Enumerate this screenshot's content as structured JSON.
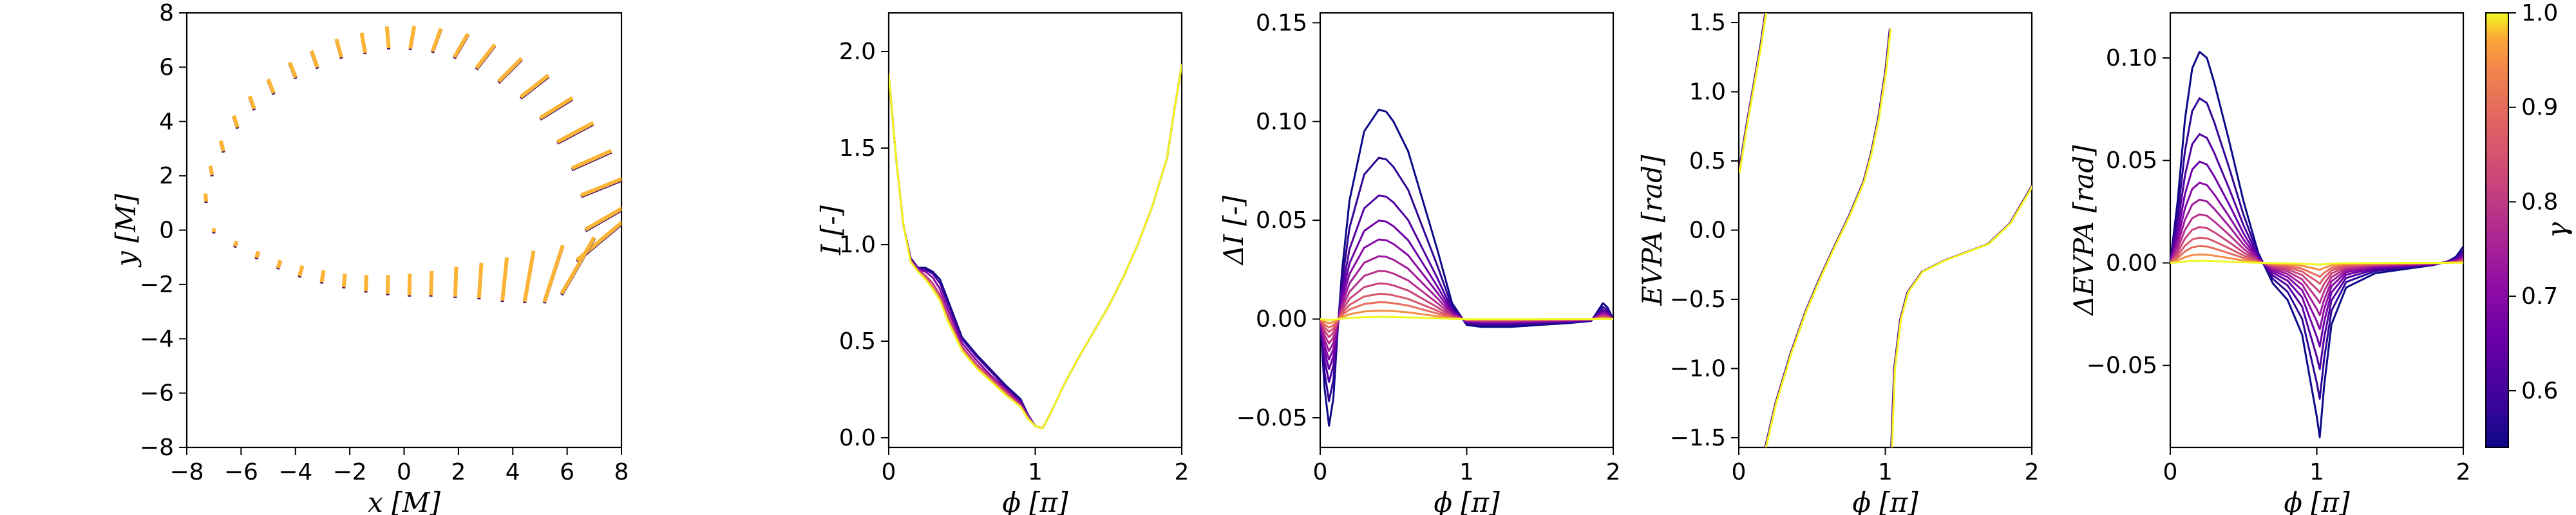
{
  "chart_data": [
    {
      "id": "trajectory",
      "type": "scatter",
      "xlabel": "x [M]",
      "ylabel": "y [M]",
      "xlim": [
        -8,
        8
      ],
      "ylim": [
        -8,
        8
      ],
      "xticks": [
        -8,
        -6,
        -4,
        -2,
        0,
        2,
        4,
        6,
        8
      ],
      "yticks": [
        -8,
        -6,
        -4,
        -2,
        0,
        2,
        4,
        6,
        8
      ],
      "xtick_labels": [
        "−8",
        "−6",
        "−4",
        "−2",
        "0",
        "2",
        "4",
        "6",
        "8"
      ],
      "ytick_labels": [
        "−8",
        "−6",
        "−4",
        "−2",
        "0",
        "2",
        "4",
        "6",
        "8"
      ],
      "points": [
        {
          "x": -7.3,
          "y": 1.2,
          "len": 0.3,
          "ang": 95
        },
        {
          "x": -7.1,
          "y": 2.2,
          "len": 0.35,
          "ang": 100
        },
        {
          "x": -6.7,
          "y": 3.1,
          "len": 0.4,
          "ang": 105
        },
        {
          "x": -6.2,
          "y": 4.0,
          "len": 0.45,
          "ang": 108
        },
        {
          "x": -5.6,
          "y": 4.7,
          "len": 0.5,
          "ang": 110
        },
        {
          "x": -4.9,
          "y": 5.3,
          "len": 0.55,
          "ang": 112
        },
        {
          "x": -4.1,
          "y": 5.9,
          "len": 0.6,
          "ang": 112
        },
        {
          "x": -3.3,
          "y": 6.3,
          "len": 0.65,
          "ang": 110
        },
        {
          "x": -2.4,
          "y": 6.7,
          "len": 0.7,
          "ang": 105
        },
        {
          "x": -1.5,
          "y": 6.9,
          "len": 0.75,
          "ang": 100
        },
        {
          "x": -0.6,
          "y": 7.1,
          "len": 0.8,
          "ang": 95
        },
        {
          "x": 0.3,
          "y": 7.1,
          "len": 0.85,
          "ang": 80
        },
        {
          "x": 1.2,
          "y": 7.0,
          "len": 0.9,
          "ang": 70
        },
        {
          "x": 2.1,
          "y": 6.8,
          "len": 1.0,
          "ang": 60
        },
        {
          "x": 3.0,
          "y": 6.4,
          "len": 1.1,
          "ang": 52
        },
        {
          "x": 3.9,
          "y": 5.9,
          "len": 1.2,
          "ang": 45
        },
        {
          "x": 4.8,
          "y": 5.3,
          "len": 1.3,
          "ang": 38
        },
        {
          "x": 5.6,
          "y": 4.5,
          "len": 1.4,
          "ang": 32
        },
        {
          "x": 6.3,
          "y": 3.6,
          "len": 1.5,
          "ang": 28
        },
        {
          "x": 6.9,
          "y": 2.6,
          "len": 1.6,
          "ang": 24
        },
        {
          "x": 7.3,
          "y": 1.6,
          "len": 1.7,
          "ang": 22
        },
        {
          "x": 7.5,
          "y": 0.5,
          "len": 1.9,
          "ang": 30
        },
        {
          "x": 7.2,
          "y": -0.4,
          "len": 2.2,
          "ang": 40
        },
        {
          "x": 6.4,
          "y": -1.3,
          "len": 2.4,
          "ang": 60
        },
        {
          "x": 5.5,
          "y": -1.6,
          "len": 2.2,
          "ang": 72
        },
        {
          "x": 4.6,
          "y": -1.7,
          "len": 1.9,
          "ang": 80
        },
        {
          "x": 3.7,
          "y": -1.8,
          "len": 1.6,
          "ang": 84
        },
        {
          "x": 2.8,
          "y": -1.85,
          "len": 1.3,
          "ang": 86
        },
        {
          "x": 1.9,
          "y": -1.9,
          "len": 1.1,
          "ang": 88
        },
        {
          "x": 1.0,
          "y": -1.95,
          "len": 0.9,
          "ang": 88
        },
        {
          "x": 0.2,
          "y": -2.0,
          "len": 0.8,
          "ang": 89
        },
        {
          "x": -0.6,
          "y": -2.0,
          "len": 0.7,
          "ang": 89
        },
        {
          "x": -1.4,
          "y": -1.95,
          "len": 0.6,
          "ang": 88
        },
        {
          "x": -2.2,
          "y": -1.85,
          "len": 0.5,
          "ang": 85
        },
        {
          "x": -3.0,
          "y": -1.7,
          "len": 0.45,
          "ang": 80
        },
        {
          "x": -3.8,
          "y": -1.5,
          "len": 0.4,
          "ang": 75
        },
        {
          "x": -4.6,
          "y": -1.25,
          "len": 0.3,
          "ang": 70
        },
        {
          "x": -5.4,
          "y": -0.9,
          "len": 0.25,
          "ang": 70
        },
        {
          "x": -6.2,
          "y": -0.5,
          "len": 0.2,
          "ang": 70
        },
        {
          "x": -7.0,
          "y": 0.0,
          "len": 0.15,
          "ang": 80
        }
      ]
    },
    {
      "id": "intensity",
      "type": "line",
      "xlabel": "ϕ [π]",
      "ylabel": "I [-]",
      "xlim": [
        0,
        2
      ],
      "ylim": [
        -0.05,
        2.2
      ],
      "xticks": [
        0,
        1,
        2
      ],
      "yticks": [
        0.0,
        0.5,
        1.0,
        1.5,
        2.0
      ],
      "xtick_labels": [
        "0",
        "1",
        "2"
      ],
      "ytick_labels": [
        "0.0",
        "0.5",
        "1.0",
        "1.5",
        "2.0"
      ],
      "x": [
        0.0,
        0.05,
        0.1,
        0.15,
        0.2,
        0.25,
        0.3,
        0.35,
        0.4,
        0.5,
        0.6,
        0.7,
        0.8,
        0.9,
        0.95,
        1.0,
        1.05,
        1.1,
        1.2,
        1.3,
        1.4,
        1.5,
        1.6,
        1.7,
        1.8,
        1.9,
        1.95,
        2.0
      ],
      "gamma_min": 0.54,
      "gamma_max": 1.0,
      "series": [
        {
          "gamma": 0.54,
          "values": [
            1.88,
            1.45,
            1.1,
            0.93,
            0.88,
            0.88,
            0.86,
            0.82,
            0.72,
            0.52,
            0.43,
            0.35,
            0.27,
            0.2,
            0.12,
            0.06,
            0.05,
            0.12,
            0.28,
            0.42,
            0.55,
            0.68,
            0.83,
            1.0,
            1.2,
            1.45,
            1.7,
            1.93
          ]
        },
        {
          "gamma": 0.6,
          "values": [
            1.88,
            1.45,
            1.1,
            0.93,
            0.88,
            0.87,
            0.85,
            0.8,
            0.7,
            0.51,
            0.42,
            0.34,
            0.26,
            0.19,
            0.12,
            0.06,
            0.05,
            0.12,
            0.28,
            0.42,
            0.55,
            0.68,
            0.83,
            1.0,
            1.2,
            1.45,
            1.7,
            1.93
          ]
        },
        {
          "gamma": 0.7,
          "values": [
            1.88,
            1.45,
            1.1,
            0.92,
            0.87,
            0.86,
            0.83,
            0.77,
            0.67,
            0.49,
            0.4,
            0.32,
            0.25,
            0.18,
            0.11,
            0.06,
            0.05,
            0.12,
            0.28,
            0.42,
            0.55,
            0.68,
            0.83,
            1.0,
            1.2,
            1.45,
            1.7,
            1.93
          ]
        },
        {
          "gamma": 0.8,
          "values": [
            1.88,
            1.45,
            1.1,
            0.92,
            0.87,
            0.84,
            0.8,
            0.74,
            0.64,
            0.47,
            0.38,
            0.31,
            0.24,
            0.17,
            0.11,
            0.06,
            0.05,
            0.12,
            0.28,
            0.42,
            0.55,
            0.68,
            0.83,
            1.0,
            1.2,
            1.45,
            1.7,
            1.93
          ]
        },
        {
          "gamma": 0.9,
          "values": [
            1.88,
            1.45,
            1.1,
            0.91,
            0.86,
            0.83,
            0.78,
            0.72,
            0.62,
            0.46,
            0.37,
            0.3,
            0.23,
            0.16,
            0.1,
            0.06,
            0.05,
            0.12,
            0.28,
            0.42,
            0.55,
            0.68,
            0.83,
            1.0,
            1.2,
            1.45,
            1.7,
            1.93
          ]
        },
        {
          "gamma": 1.0,
          "values": [
            1.88,
            1.45,
            1.1,
            0.91,
            0.86,
            0.82,
            0.77,
            0.71,
            0.61,
            0.45,
            0.36,
            0.29,
            0.22,
            0.16,
            0.1,
            0.06,
            0.05,
            0.12,
            0.28,
            0.42,
            0.55,
            0.68,
            0.83,
            1.0,
            1.2,
            1.45,
            1.7,
            1.93
          ]
        }
      ]
    },
    {
      "id": "delta-intensity",
      "type": "line",
      "xlabel": "ϕ [π]",
      "ylabel": "ΔI [-]",
      "xlim": [
        0,
        2
      ],
      "ylim": [
        -0.065,
        0.155
      ],
      "xticks": [
        0,
        1,
        2
      ],
      "yticks": [
        -0.05,
        0.0,
        0.05,
        0.1,
        0.15
      ],
      "xtick_labels": [
        "0",
        "1",
        "2"
      ],
      "ytick_labels": [
        "−0.05",
        "0.00",
        "0.05",
        "0.10",
        "0.15"
      ],
      "x": [
        0.0,
        0.03,
        0.06,
        0.09,
        0.12,
        0.15,
        0.2,
        0.3,
        0.4,
        0.45,
        0.5,
        0.6,
        0.7,
        0.8,
        0.9,
        1.0,
        1.1,
        1.3,
        1.5,
        1.7,
        1.85,
        1.93,
        1.96,
        2.0
      ],
      "gamma_min": 0.54,
      "gamma_max": 1.0,
      "amplitudes": [
        {
          "gamma": 0.54,
          "amp": 1.0
        },
        {
          "gamma": 0.58,
          "amp": 0.77
        },
        {
          "gamma": 0.62,
          "amp": 0.59
        },
        {
          "gamma": 0.66,
          "amp": 0.47
        },
        {
          "gamma": 0.7,
          "amp": 0.38
        },
        {
          "gamma": 0.74,
          "amp": 0.3
        },
        {
          "gamma": 0.78,
          "amp": 0.23
        },
        {
          "gamma": 0.82,
          "amp": 0.17
        },
        {
          "gamma": 0.86,
          "amp": 0.12
        },
        {
          "gamma": 0.9,
          "amp": 0.08
        },
        {
          "gamma": 0.95,
          "amp": 0.04
        },
        {
          "gamma": 1.0,
          "amp": 0.01
        }
      ],
      "base_values": [
        0.0,
        -0.035,
        -0.054,
        -0.04,
        -0.005,
        0.025,
        0.06,
        0.095,
        0.106,
        0.105,
        0.1,
        0.085,
        0.06,
        0.035,
        0.008,
        -0.003,
        -0.004,
        -0.004,
        -0.003,
        -0.002,
        -0.001,
        0.008,
        0.006,
        0.0
      ]
    },
    {
      "id": "evpa",
      "type": "line",
      "xlabel": "ϕ [π]",
      "ylabel": "EVPA [rad]",
      "xlim": [
        0,
        2
      ],
      "ylim": [
        -1.57,
        1.57
      ],
      "xticks": [
        0,
        1,
        2
      ],
      "yticks": [
        -1.5,
        -1.0,
        -0.5,
        0.0,
        0.5,
        1.0,
        1.5
      ],
      "xtick_labels": [
        "0",
        "1",
        "2"
      ],
      "ytick_labels": [
        "−1.5",
        "−1.0",
        "−0.5",
        "0.0",
        "0.5",
        "1.0",
        "1.5"
      ],
      "branches": [
        {
          "x": [
            0.0,
            0.05,
            0.1,
            0.15,
            0.18
          ],
          "y": [
            0.42,
            0.75,
            1.05,
            1.35,
            1.57
          ]
        },
        {
          "x": [
            0.18,
            0.25,
            0.35,
            0.45,
            0.55,
            0.65,
            0.75,
            0.85,
            0.9,
            0.95,
            1.0,
            1.03
          ],
          "y": [
            -1.57,
            -1.25,
            -0.9,
            -0.6,
            -0.35,
            -0.12,
            0.1,
            0.35,
            0.55,
            0.8,
            1.15,
            1.45
          ]
        },
        {
          "x": [
            1.04,
            1.06,
            1.1,
            1.15,
            1.25,
            1.4,
            1.55,
            1.7,
            1.85,
            2.0
          ],
          "y": [
            -1.57,
            -1.0,
            -0.65,
            -0.45,
            -0.3,
            -0.22,
            -0.16,
            -0.1,
            0.05,
            0.32
          ]
        }
      ]
    },
    {
      "id": "delta-evpa",
      "type": "line",
      "xlabel": "ϕ [π]",
      "ylabel": "ΔEVPA [rad]",
      "xlim": [
        0,
        2
      ],
      "ylim": [
        -0.09,
        0.122
      ],
      "xticks": [
        0,
        1,
        2
      ],
      "yticks": [
        -0.05,
        0.0,
        0.05,
        0.1
      ],
      "xtick_labels": [
        "0",
        "1",
        "2"
      ],
      "ytick_labels": [
        "−0.05",
        "0.00",
        "0.05",
        "0.10"
      ],
      "x": [
        0.0,
        0.05,
        0.1,
        0.15,
        0.2,
        0.25,
        0.3,
        0.4,
        0.5,
        0.6,
        0.7,
        0.8,
        0.9,
        0.95,
        1.0,
        1.02,
        1.05,
        1.1,
        1.2,
        1.4,
        1.6,
        1.8,
        1.9,
        1.95,
        2.0
      ],
      "gamma_min": 0.54,
      "gamma_max": 1.0,
      "amplitudes": [
        {
          "gamma": 0.54,
          "amp": 1.0
        },
        {
          "gamma": 0.58,
          "amp": 0.78
        },
        {
          "gamma": 0.62,
          "amp": 0.61
        },
        {
          "gamma": 0.66,
          "amp": 0.48
        },
        {
          "gamma": 0.7,
          "amp": 0.38
        },
        {
          "gamma": 0.74,
          "amp": 0.3
        },
        {
          "gamma": 0.78,
          "amp": 0.23
        },
        {
          "gamma": 0.82,
          "amp": 0.17
        },
        {
          "gamma": 0.86,
          "amp": 0.12
        },
        {
          "gamma": 0.9,
          "amp": 0.08
        },
        {
          "gamma": 0.95,
          "amp": 0.04
        },
        {
          "gamma": 1.0,
          "amp": 0.01
        }
      ],
      "base_values": [
        0.0,
        0.03,
        0.07,
        0.095,
        0.103,
        0.1,
        0.088,
        0.06,
        0.03,
        0.005,
        -0.01,
        -0.018,
        -0.035,
        -0.055,
        -0.075,
        -0.085,
        -0.06,
        -0.03,
        -0.012,
        -0.005,
        -0.003,
        -0.001,
        0.001,
        0.003,
        0.008
      ]
    }
  ],
  "colorbar": {
    "label": "γ",
    "min": 0.54,
    "max": 1.0,
    "ticks": [
      0.6,
      0.7,
      0.8,
      0.9,
      1.0
    ],
    "tick_labels": [
      "0.6",
      "0.7",
      "0.8",
      "0.9",
      "1.0"
    ]
  }
}
